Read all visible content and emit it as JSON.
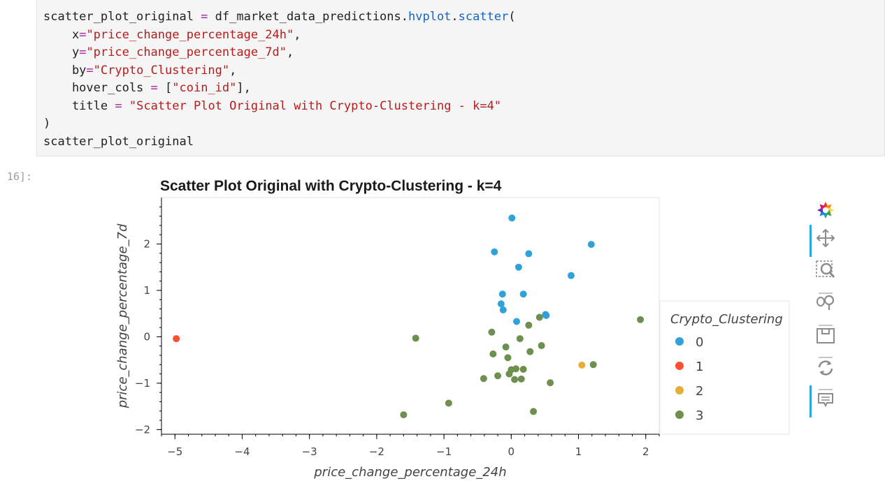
{
  "code": {
    "line1_var": "scatter_plot_original",
    "line1_eq": " = ",
    "line1_obj": "df_market_data_predictions.",
    "line1_attr1": "hvplot",
    "line1_dot": ".",
    "line1_attr2": "scatter",
    "line1_paren": "(",
    "line2_key": "    x",
    "line2_eq": "=",
    "line2_val": "\"price_change_percentage_24h\"",
    "line2_comma": ",",
    "line3_key": "    y",
    "line3_eq": "=",
    "line3_val": "\"price_change_percentage_7d\"",
    "line3_comma": ",",
    "line4_key": "    by",
    "line4_eq": "=",
    "line4_val": "\"Crypto_Clustering\"",
    "line4_comma": ",",
    "line5_key": "    hover_cols ",
    "line5_eq": "=",
    "line5_pre": " [",
    "line5_val": "\"coin_id\"",
    "line5_post": "],",
    "line6_key": "    title ",
    "line6_eq": "=",
    "line6_sp": " ",
    "line6_val": "\"Scatter Plot Original with Crypto-Clustering - k=4\"",
    "line7": ")",
    "line8": "scatter_plot_original"
  },
  "output_prompt": "16]:",
  "chart_data": {
    "type": "scatter",
    "title": "Scatter Plot Original with Crypto-Clustering - k=4",
    "xlabel": "price_change_percentage_24h",
    "ylabel": "price_change_percentage_7d",
    "xlim": [
      -5.2,
      2.2
    ],
    "ylim": [
      -2.1,
      3.0
    ],
    "xticks": [
      -5,
      -4,
      -3,
      -2,
      -1,
      0,
      1,
      2
    ],
    "xtick_labels": [
      "−5",
      "−4",
      "−3",
      "−2",
      "−1",
      "0",
      "1",
      "2"
    ],
    "yticks": [
      -2,
      -1,
      0,
      1,
      2
    ],
    "ytick_labels": [
      "−2",
      "−1",
      "0",
      "1",
      "2"
    ],
    "grid": false,
    "legend_title": "Crypto_Clustering",
    "legend_position": "right",
    "series": [
      {
        "name": "0",
        "color": "#30a2da",
        "x": [
          0.01,
          -0.25,
          0.26,
          1.19,
          0.11,
          0.89,
          -0.13,
          0.18,
          -0.15,
          -0.12,
          0.51,
          0.52,
          0.08
        ],
        "y": [
          2.56,
          1.83,
          1.79,
          1.99,
          1.5,
          1.32,
          0.92,
          0.92,
          0.71,
          0.58,
          0.48,
          0.46,
          0.33
        ]
      },
      {
        "name": "1",
        "color": "#fc4f30",
        "x": [
          -4.98
        ],
        "y": [
          -0.04
        ]
      },
      {
        "name": "2",
        "color": "#e5ae38",
        "x": [
          1.05
        ],
        "y": [
          -0.61
        ]
      },
      {
        "name": "3",
        "color": "#6d904f",
        "x": [
          1.92,
          0.42,
          0.26,
          -0.29,
          0.13,
          -1.42,
          0.45,
          -0.08,
          0.28,
          -0.27,
          -0.05,
          1.22,
          0.07,
          0.0,
          0.18,
          -0.03,
          -0.2,
          -0.41,
          0.15,
          0.05,
          0.58,
          -0.93,
          -1.6,
          0.33
        ],
        "y": [
          0.37,
          0.42,
          0.25,
          0.1,
          -0.04,
          -0.03,
          -0.19,
          -0.22,
          -0.32,
          -0.37,
          -0.45,
          -0.6,
          -0.69,
          -0.71,
          -0.7,
          -0.8,
          -0.84,
          -0.9,
          -0.91,
          -0.92,
          -0.99,
          -1.43,
          -1.68,
          -1.61
        ]
      }
    ],
    "toolbar_tools": [
      "bokeh-logo-icon",
      "pan-icon",
      "box-zoom-icon",
      "wheel-zoom-icon",
      "save-icon",
      "reset-icon",
      "hover-icon"
    ]
  }
}
